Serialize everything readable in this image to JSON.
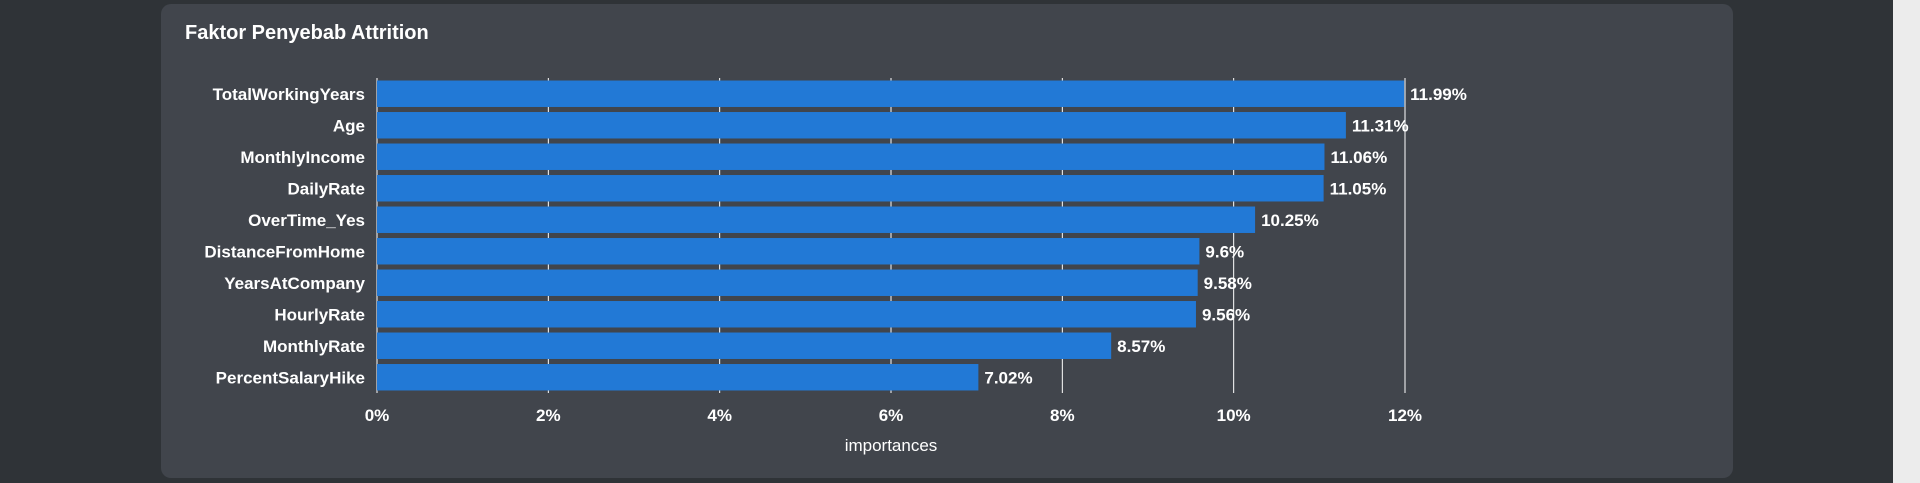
{
  "card": {
    "title": "Faktor Penyebab Attrition"
  },
  "colors": {
    "bar": "#2279d6",
    "grid": "#ffffff",
    "card_bg": "#41454c",
    "page_bg": "#2f3337"
  },
  "chart_data": {
    "type": "bar",
    "orientation": "horizontal",
    "title": "Faktor Penyebab Attrition",
    "xlabel": "importances",
    "ylabel": "",
    "xlim": [
      0,
      12
    ],
    "x_ticks": [
      "0%",
      "2%",
      "4%",
      "6%",
      "8%",
      "10%",
      "12%"
    ],
    "grid": true,
    "categories": [
      "TotalWorkingYears",
      "Age",
      "MonthlyIncome",
      "DailyRate",
      "OverTime_Yes",
      "DistanceFromHome",
      "YearsAtCompany",
      "HourlyRate",
      "MonthlyRate",
      "PercentSalaryHike"
    ],
    "values": [
      11.99,
      11.31,
      11.06,
      11.05,
      10.25,
      9.6,
      9.58,
      9.56,
      8.57,
      7.02
    ],
    "value_labels": [
      "11.99%",
      "11.31%",
      "11.06%",
      "11.05%",
      "10.25%",
      "9.6%",
      "9.58%",
      "9.56%",
      "8.57%",
      "7.02%"
    ]
  }
}
